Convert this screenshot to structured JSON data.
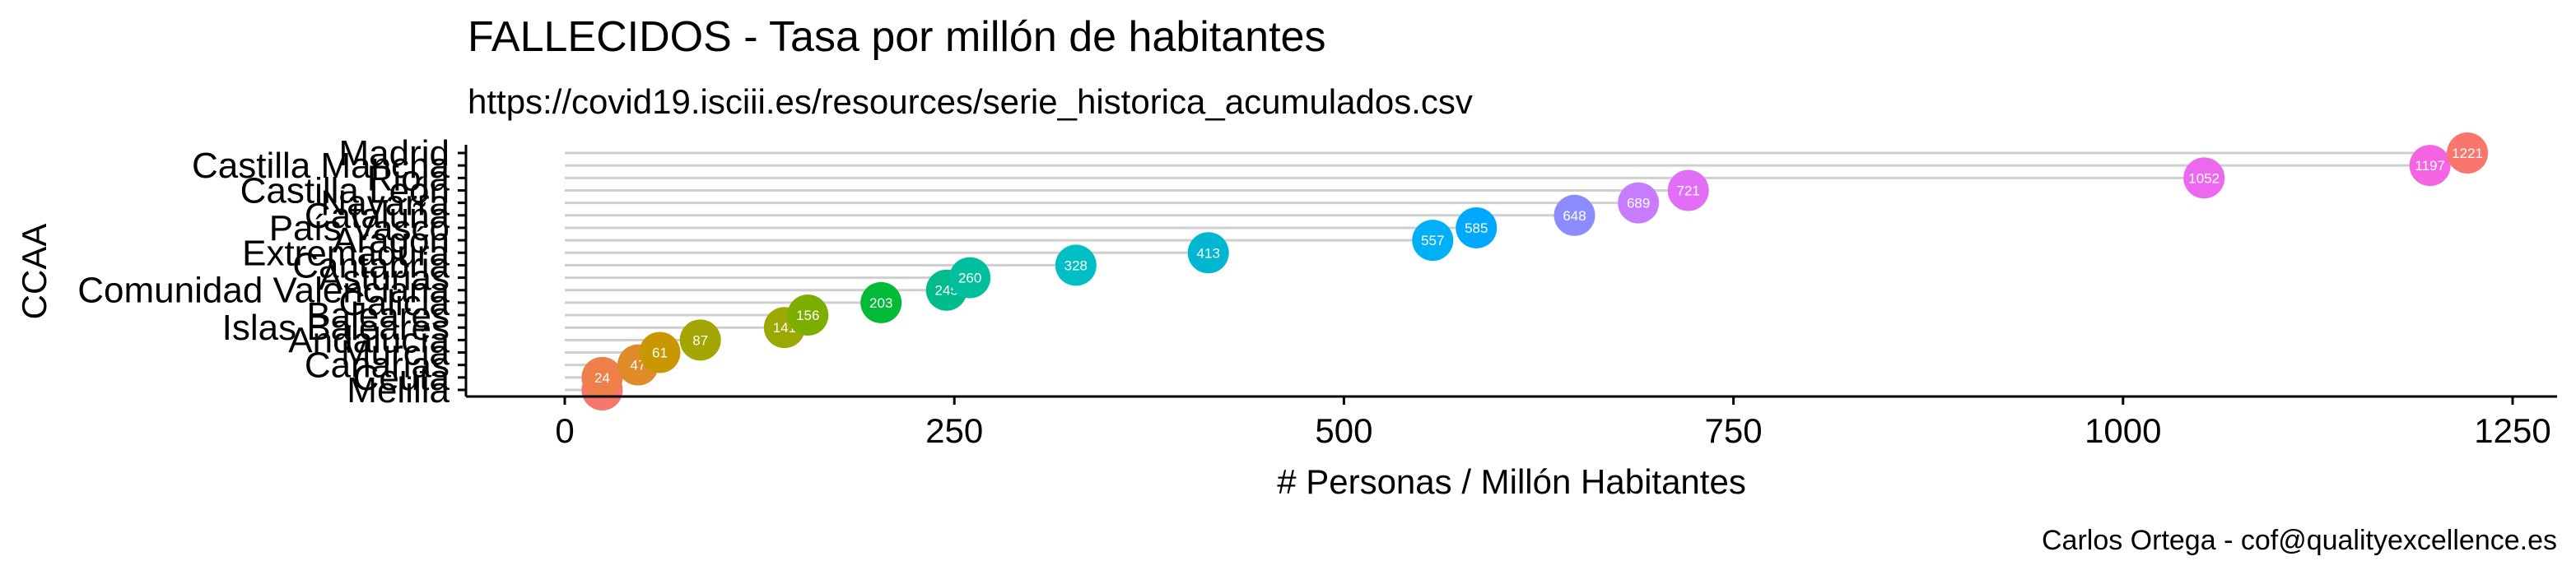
{
  "chart_data": {
    "type": "lollipop",
    "title": "FALLECIDOS - Tasa por millón de habitantes",
    "subtitle": "https://covid19.isciii.es/resources/serie_historica_acumulados.csv",
    "caption": "Carlos Ortega - cof@qualityexcellence.es",
    "xlabel": "# Personas / Millón Habitantes",
    "ylabel": "CCAA",
    "xlim": [
      0,
      1250
    ],
    "x_ticks": [
      0,
      250,
      500,
      750,
      1000,
      1250
    ],
    "grid": "horizontal segments only",
    "categories": [
      "Madrid",
      "Castilla Mancha",
      "Rioja",
      "Castilla León",
      "Navarra",
      "Cataluña",
      "País Vasco",
      "Aragón",
      "Extremadura",
      "Cantabria",
      "Asturias",
      "Comunidad Valenciana",
      "Galicia",
      "Baleares",
      "Islas Baleares",
      "Andalucía",
      "Murcia",
      "Canarias",
      "Ceuta",
      "Melilla"
    ],
    "values": [
      1221,
      1197,
      1052,
      721,
      689,
      648,
      585,
      557,
      413,
      328,
      260,
      245,
      203,
      156,
      141,
      87,
      61,
      47,
      24,
      24
    ],
    "labels": [
      "1221",
      "1197",
      "1052",
      "721",
      "689",
      "648",
      "585",
      "557",
      "413",
      "328",
      "260",
      "245",
      "203",
      "156",
      "141",
      "87",
      "61",
      "47",
      "24",
      ""
    ],
    "colors": [
      "#F8766D",
      "#F564E3",
      "#EC69EF",
      "#E26EF7",
      "#C77CFF",
      "#8C8CFF",
      "#00A9FF",
      "#00B0F6",
      "#00B6D0",
      "#00BFC4",
      "#00BF9E",
      "#00BC8C",
      "#00BA38",
      "#7CAE00",
      "#9AA800",
      "#A3A500",
      "#C99800",
      "#E08B2A",
      "#EE7E4A",
      "#F8766D"
    ]
  }
}
